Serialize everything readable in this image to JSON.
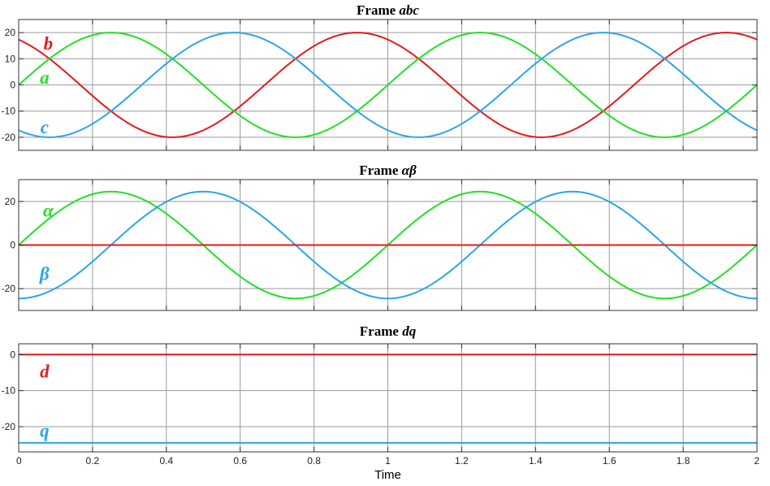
{
  "colors": {
    "red": "#e41a1c",
    "green": "#22e022",
    "blue": "#2aa6ea"
  },
  "chart_data": [
    {
      "type": "line",
      "title": "Frame",
      "title_var": "abc",
      "xlabel": "",
      "ylabel": "",
      "xlim": [
        0,
        2
      ],
      "ylim": [
        -25,
        25
      ],
      "xticks": [
        0,
        0.2,
        0.4,
        0.6,
        0.8,
        1,
        1.2,
        1.4,
        1.6,
        1.8,
        2
      ],
      "yticks": [
        -20,
        -10,
        0,
        10,
        20
      ],
      "grid": true,
      "series": [
        {
          "name": "b",
          "color": "red",
          "amplitude": 20,
          "frequency": 1,
          "phase_deg": 120,
          "label_at": [
            0.08,
            16
          ]
        },
        {
          "name": "a",
          "color": "green",
          "amplitude": 20,
          "frequency": 1,
          "phase_deg": 0,
          "label_at": [
            0.07,
            3
          ]
        },
        {
          "name": "c",
          "color": "blue",
          "amplitude": 20,
          "frequency": 1,
          "phase_deg": -120,
          "label_at": [
            0.07,
            -16
          ]
        }
      ]
    },
    {
      "type": "line",
      "title": "Frame",
      "title_var": "αβ",
      "xlabel": "",
      "ylabel": "",
      "xlim": [
        0,
        2
      ],
      "ylim": [
        -30,
        30
      ],
      "xticks": [
        0,
        0.2,
        0.4,
        0.6,
        0.8,
        1,
        1.2,
        1.4,
        1.6,
        1.8,
        2
      ],
      "yticks": [
        -20,
        0,
        20
      ],
      "grid": true,
      "series": [
        {
          "name": "α",
          "color": "green",
          "amplitude": 24.5,
          "frequency": 1,
          "phase_deg": 0,
          "label_at": [
            0.08,
            16
          ]
        },
        {
          "name": "β",
          "color": "blue",
          "amplitude": 24.5,
          "frequency": 1,
          "phase_deg": -90,
          "label_at": [
            0.07,
            -13
          ]
        },
        {
          "name": "",
          "color": "red",
          "amplitude": 0,
          "frequency": 1,
          "phase_deg": 0,
          "offset": 0,
          "label_at": null
        }
      ]
    },
    {
      "type": "line",
      "title": "Frame",
      "title_var": "dq",
      "xlabel": "Time",
      "ylabel": "",
      "xlim": [
        0,
        2
      ],
      "ylim": [
        -27,
        3
      ],
      "xticks": [
        0,
        0.2,
        0.4,
        0.6,
        0.8,
        1,
        1.2,
        1.4,
        1.6,
        1.8,
        2
      ],
      "xticklabels": [
        "0",
        "0.2",
        "0.4",
        "0.6",
        "0.8",
        "1",
        "1.2",
        "1.4",
        "1.6",
        "1.8",
        "2"
      ],
      "yticks": [
        -20,
        -10,
        0
      ],
      "grid": true,
      "series": [
        {
          "name": "d",
          "color": "red",
          "amplitude": 0,
          "offset": 0,
          "frequency": 1,
          "phase_deg": 0,
          "label_at": [
            0.07,
            -4.5
          ]
        },
        {
          "name": "q",
          "color": "blue",
          "amplitude": 0,
          "offset": -24.5,
          "frequency": 1,
          "phase_deg": 0,
          "label_at": [
            0.07,
            -21
          ]
        }
      ]
    }
  ]
}
